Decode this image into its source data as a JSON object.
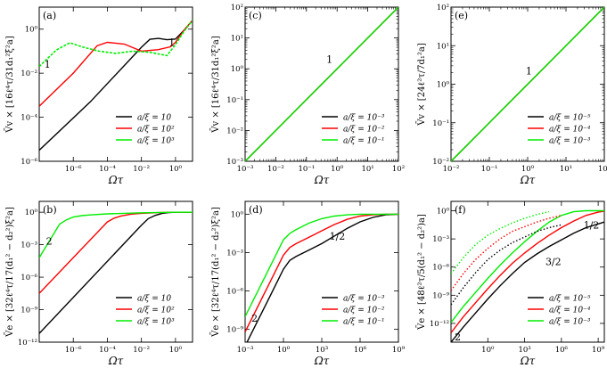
{
  "figure": {
    "x_axis_label": "Ωτ"
  },
  "chart_data": [
    {
      "id": "a",
      "type": "line",
      "panel_label": "(a)",
      "title": "",
      "xlabel": "Ωτ",
      "ylabel": "V̄v × [16ℓ⁴τ/31d₁²ξ²a]",
      "xscale": "log",
      "yscale": "log",
      "xlim_exp": [
        -8,
        1
      ],
      "ylim_exp": [
        -6,
        1
      ],
      "x_ticks_exp": [
        -6,
        -4,
        -2,
        0
      ],
      "y_ticks_exp": [
        -6,
        -4,
        -2,
        0
      ],
      "legend_position": "bottom-right",
      "series": [
        {
          "name": "a/ξ = 10",
          "color": "#000000",
          "dash": "solid",
          "x_exp": [
            -8,
            -5,
            -2,
            -1.5,
            -1,
            -0.5,
            0,
            0.5,
            1
          ],
          "y_exp": [
            -5.5,
            -3.3,
            -0.82,
            -0.46,
            -0.42,
            -0.48,
            -0.45,
            -0.05,
            0.4
          ]
        },
        {
          "name": "a/ξ = 10²",
          "color": "#ff0000",
          "dash": "solid",
          "x_exp": [
            -8,
            -6,
            -4.6,
            -4,
            -3,
            -2,
            -1,
            -0.3,
            0,
            0.5,
            1
          ],
          "y_exp": [
            -3.5,
            -2.0,
            -0.75,
            -0.6,
            -0.68,
            -1.0,
            -0.93,
            -0.8,
            -0.6,
            -0.05,
            0.4
          ]
        },
        {
          "name": "a/ξ = 10³",
          "color": "#00ee00",
          "dash": "wavy",
          "x_exp": [
            -8,
            -7,
            -6.2,
            -5.5,
            -4.5,
            -3.5,
            -2.5,
            -1.5,
            -0.5,
            0,
            0.5,
            1
          ],
          "y_exp": [
            -1.7,
            -0.95,
            -0.62,
            -0.8,
            -1.0,
            -1.1,
            -1.0,
            -1.05,
            -1.2,
            -0.7,
            -0.1,
            0.4
          ]
        }
      ],
      "annotations": [
        {
          "text": "1",
          "x_exp": -7.7,
          "y_exp": -1.75
        },
        {
          "text": "1",
          "x_exp": -0.4,
          "y_exp": -0.75
        }
      ]
    },
    {
      "id": "b",
      "type": "line",
      "panel_label": "(b)",
      "title": "",
      "xlabel": "Ωτ",
      "ylabel": "V̄e × [32ℓ⁴τ/17(d₁² − d₂²)ξ²a]",
      "xscale": "log",
      "yscale": "log",
      "xlim_exp": [
        -8,
        1
      ],
      "ylim_exp": [
        -12,
        1
      ],
      "x_ticks_exp": [
        -6,
        -4,
        -2,
        0
      ],
      "y_ticks_exp": [
        -12,
        -9,
        -6,
        -3,
        0
      ],
      "legend_position": "bottom-right",
      "series": [
        {
          "name": "a/ξ = 10",
          "color": "#000000",
          "dash": "solid",
          "x_exp": [
            -8,
            -2,
            -1.6,
            -1.2,
            -0.8,
            -0.4,
            0,
            1
          ],
          "y_exp": [
            -11.2,
            -1.2,
            -0.6,
            -0.3,
            -0.12,
            -0.04,
            0,
            0
          ]
        },
        {
          "name": "a/ξ = 10²",
          "color": "#ff0000",
          "dash": "solid",
          "x_exp": [
            -8,
            -4,
            -3.6,
            -3.2,
            -2.6,
            -2,
            -1,
            0,
            1
          ],
          "y_exp": [
            -7.5,
            -0.9,
            -0.55,
            -0.35,
            -0.18,
            -0.1,
            -0.04,
            0,
            0
          ]
        },
        {
          "name": "a/ξ = 10³",
          "color": "#00ee00",
          "dash": "solid",
          "x_exp": [
            -8,
            -6.8,
            -6.4,
            -6,
            -5.5,
            -5,
            -4,
            -2,
            0,
            1
          ],
          "y_exp": [
            -4.2,
            -1.1,
            -0.7,
            -0.45,
            -0.32,
            -0.25,
            -0.15,
            -0.05,
            0,
            0
          ]
        }
      ],
      "annotations": [
        {
          "text": "2",
          "x_exp": -7.6,
          "y_exp": -3.0
        }
      ]
    },
    {
      "id": "c",
      "type": "line",
      "panel_label": "(c)",
      "title": "",
      "xlabel": "Ωτ",
      "ylabel": "V̄v × [16ℓ⁴τ/31d₁²ξ²a]",
      "xscale": "log",
      "yscale": "log",
      "xlim_exp": [
        -3,
        2
      ],
      "ylim_exp": [
        -3,
        2
      ],
      "x_ticks_exp": [
        -3,
        -2,
        -1,
        0,
        1,
        2
      ],
      "y_ticks_exp": [
        -3,
        -2,
        -1,
        0,
        1,
        2
      ],
      "legend_position": "bottom-right",
      "series": [
        {
          "name": "a/ξ = 10⁻³",
          "color": "#000000",
          "dash": "solid",
          "x_exp": [
            -3,
            2
          ],
          "y_exp": [
            -3,
            2
          ]
        },
        {
          "name": "a/ξ = 10⁻²",
          "color": "#ff0000",
          "dash": "solid",
          "x_exp": [
            -3,
            2
          ],
          "y_exp": [
            -3,
            2
          ]
        },
        {
          "name": "a/ξ = 10⁻¹",
          "color": "#00ee00",
          "dash": "solid",
          "x_exp": [
            -3,
            2
          ],
          "y_exp": [
            -3,
            2
          ]
        }
      ],
      "annotations": [
        {
          "text": "1",
          "x_exp": -0.35,
          "y_exp": 0.2
        }
      ]
    },
    {
      "id": "d",
      "type": "line",
      "panel_label": "(d)",
      "title": "",
      "xlabel": "Ωτ",
      "ylabel": "V̄e × [32ℓ⁴τ/17(d₁² − d₂²)ξ²a]",
      "xscale": "log",
      "yscale": "log",
      "xlim_exp": [
        -3,
        9
      ],
      "ylim_exp": [
        -10,
        1
      ],
      "x_ticks_exp": [
        -3,
        0,
        3,
        6,
        9
      ],
      "y_ticks_exp": [
        -9,
        -6,
        -3,
        0
      ],
      "legend_position": "bottom-right",
      "series": [
        {
          "name": "a/ξ = 10⁻³",
          "color": "#000000",
          "dash": "solid",
          "x_exp": [
            -3,
            -1,
            0,
            0.5,
            1,
            2,
            3,
            4,
            5,
            6,
            7,
            8,
            9
          ],
          "y_exp": [
            -10.3,
            -6.3,
            -4.3,
            -3.6,
            -3.3,
            -2.8,
            -2.3,
            -1.7,
            -1.1,
            -0.6,
            -0.25,
            -0.05,
            0
          ]
        },
        {
          "name": "a/ξ = 10⁻²",
          "color": "#ff0000",
          "dash": "solid",
          "x_exp": [
            -3,
            -1,
            0,
            0.5,
            1,
            2,
            3,
            4,
            5,
            6,
            7,
            8,
            9
          ],
          "y_exp": [
            -9.2,
            -5.2,
            -3.2,
            -2.6,
            -2.3,
            -1.8,
            -1.3,
            -0.8,
            -0.4,
            -0.15,
            -0.05,
            0,
            0
          ]
        },
        {
          "name": "a/ξ = 10⁻¹",
          "color": "#00ee00",
          "dash": "solid",
          "x_exp": [
            -3,
            -1,
            0,
            0.5,
            1,
            2,
            3,
            4,
            5,
            6,
            7,
            9
          ],
          "y_exp": [
            -8.0,
            -4.0,
            -2.0,
            -1.5,
            -1.2,
            -0.7,
            -0.35,
            -0.15,
            -0.05,
            0,
            0,
            0
          ]
        }
      ],
      "annotations": [
        {
          "text": "1/2",
          "x_exp": 3.6,
          "y_exp": -2.0
        },
        {
          "text": "2",
          "x_exp": -2.5,
          "y_exp": -8.4
        }
      ]
    },
    {
      "id": "e",
      "type": "line",
      "panel_label": "(e)",
      "title": "",
      "xlabel": "Ωτ",
      "ylabel": "V̄v × [24ℓ²τ/7d₁²a]",
      "xscale": "log",
      "yscale": "log",
      "xlim_exp": [
        -2,
        2
      ],
      "ylim_exp": [
        -2,
        2
      ],
      "x_ticks_exp": [
        -2,
        -1,
        0,
        1,
        2
      ],
      "y_ticks_exp": [
        -2,
        -1,
        0,
        1,
        2
      ],
      "legend_position": "bottom-right",
      "series": [
        {
          "name": "a/ξ = 10⁻⁵",
          "color": "#000000",
          "dash": "solid",
          "x_exp": [
            -2,
            2
          ],
          "y_exp": [
            -2,
            2
          ]
        },
        {
          "name": "a/ξ = 10⁻⁴",
          "color": "#ff0000",
          "dash": "solid",
          "x_exp": [
            -2,
            2
          ],
          "y_exp": [
            -2,
            2
          ]
        },
        {
          "name": "a/ξ = 10⁻³",
          "color": "#00ee00",
          "dash": "solid",
          "x_exp": [
            -2,
            2
          ],
          "y_exp": [
            -2,
            2
          ]
        }
      ],
      "annotations": [
        {
          "text": "1",
          "x_exp": -0.05,
          "y_exp": 0.25
        }
      ]
    },
    {
      "id": "f",
      "type": "line",
      "panel_label": "(f)",
      "title": "",
      "xlabel": "Ωτ",
      "ylabel": "V̄e × [48ℓ²τ/5(d₁² − d₂²)a]",
      "xscale": "log",
      "yscale": "log",
      "xlim_exp": [
        -3,
        9.5
      ],
      "ylim_exp": [
        -14,
        1
      ],
      "x_ticks_exp": [
        0,
        3,
        6,
        9
      ],
      "y_ticks_exp": [
        -12,
        -9,
        -6,
        -3,
        0
      ],
      "legend_position": "bottom-right",
      "series": [
        {
          "name": "a/ξ = 10⁻⁵",
          "color": "#000000",
          "dash": "solid",
          "x_exp": [
            -3,
            -2,
            -1,
            0,
            1,
            2,
            3,
            4,
            5,
            6,
            7,
            8,
            9,
            9.5
          ],
          "y_exp": [
            -14,
            -12.4,
            -10.9,
            -9.4,
            -8.0,
            -6.7,
            -5.5,
            -4.6,
            -3.8,
            -3.1,
            -2.4,
            -1.8,
            -1.4,
            -1.2
          ]
        },
        {
          "name": "a/ξ = 10⁻⁴",
          "color": "#ff0000",
          "dash": "solid",
          "x_exp": [
            -3,
            -2,
            -1,
            0,
            1,
            2,
            3,
            4,
            5,
            6,
            7,
            8,
            9,
            9.5
          ],
          "y_exp": [
            -13.0,
            -11.3,
            -9.8,
            -8.3,
            -6.9,
            -5.6,
            -4.5,
            -3.5,
            -2.6,
            -1.8,
            -1.1,
            -0.5,
            -0.15,
            -0.05
          ]
        },
        {
          "name": "a/ξ = 10⁻³",
          "color": "#00ee00",
          "dash": "solid",
          "x_exp": [
            -3,
            -2,
            -1,
            0,
            1,
            2,
            3,
            4,
            5,
            6,
            7,
            8,
            9,
            9.5
          ],
          "y_exp": [
            -11.9,
            -10.2,
            -8.7,
            -7.2,
            -5.8,
            -4.5,
            -3.3,
            -2.2,
            -1.2,
            -0.5,
            -0.1,
            0,
            0,
            0
          ]
        },
        {
          "name": "",
          "color": "#000000",
          "dash": "dotted",
          "x_exp": [
            -3,
            -2,
            -1,
            0,
            1,
            2,
            3,
            4,
            5,
            6
          ],
          "y_exp": [
            -10,
            -8.2,
            -6.6,
            -5.2,
            -4.2,
            -3.4,
            -2.8,
            -2.2,
            -1.8,
            -1.5
          ]
        },
        {
          "name": "",
          "color": "#ff0000",
          "dash": "dotted",
          "x_exp": [
            -3,
            -2,
            -1,
            0,
            1,
            2,
            3,
            4,
            5,
            6
          ],
          "y_exp": [
            -8.5,
            -6.7,
            -5.2,
            -4.0,
            -3.0,
            -2.2,
            -1.7,
            -1.2,
            -0.8,
            -0.5
          ]
        },
        {
          "name": "",
          "color": "#00ee00",
          "dash": "dotted",
          "x_exp": [
            -3,
            -2,
            -1,
            0,
            1,
            2,
            3,
            4,
            5
          ],
          "y_exp": [
            -6.7,
            -5.0,
            -3.6,
            -2.6,
            -1.9,
            -1.3,
            -0.8,
            -0.4,
            -0.1
          ]
        }
      ],
      "annotations": [
        {
          "text": "1/2",
          "x_exp": 7.8,
          "y_exp": -1.9
        },
        {
          "text": "3/2",
          "x_exp": 4.7,
          "y_exp": -5.8
        },
        {
          "text": "2",
          "x_exp": -2.7,
          "y_exp": -13.8
        }
      ]
    }
  ]
}
